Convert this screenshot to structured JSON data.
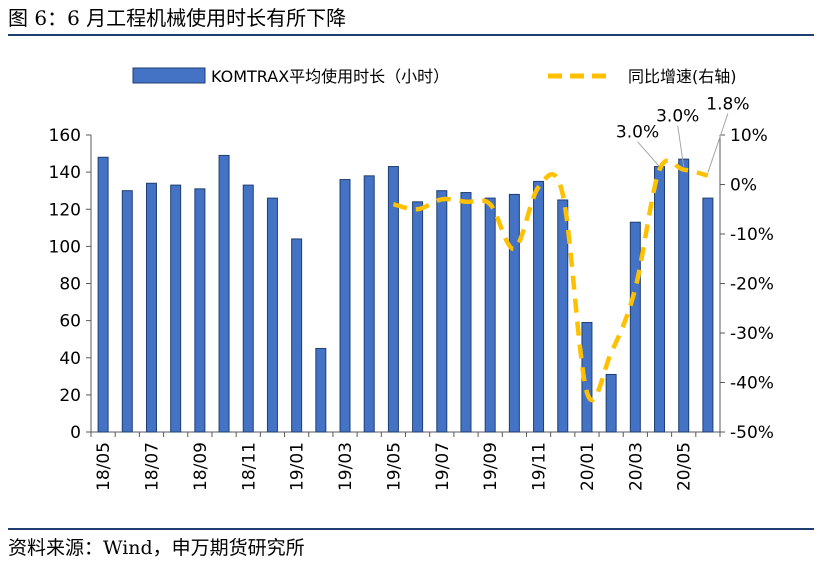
{
  "figure_title": "图 6：6 月工程机械使用时长有所下降",
  "source_text": "资料来源：Wind，申万期货研究所",
  "colors": {
    "bar_fill": "#4472c4",
    "bar_stroke": "#1f3f73",
    "line": "#ffc000",
    "rule": "#1f3f73",
    "axis": "#595959"
  },
  "chart_data": {
    "type": "bar",
    "title": "",
    "categories": [
      "18/05",
      "18/06",
      "18/07",
      "18/08",
      "18/09",
      "18/10",
      "18/11",
      "18/12",
      "19/01",
      "19/02",
      "19/03",
      "19/04",
      "19/05",
      "19/06",
      "19/07",
      "19/08",
      "19/09",
      "19/10",
      "19/11",
      "19/12",
      "20/01",
      "20/02",
      "20/03",
      "20/04",
      "20/05",
      "20/06"
    ],
    "x_tick_labels": [
      "18/05",
      "18/07",
      "18/09",
      "18/11",
      "19/01",
      "19/03",
      "19/05",
      "19/07",
      "19/09",
      "19/11",
      "20/01",
      "20/03",
      "20/05"
    ],
    "series": [
      {
        "name": "KOMTRAX平均使用时长（小时）",
        "type": "bar",
        "axis": "left",
        "values": [
          148,
          130,
          134,
          133,
          131,
          149,
          133,
          126,
          104,
          45,
          136,
          138,
          143,
          124,
          130,
          129,
          126,
          128,
          135,
          125,
          59,
          31,
          113,
          143,
          147,
          126
        ]
      },
      {
        "name": "同比增速(右轴)",
        "type": "line",
        "style": "dashed",
        "axis": "right",
        "values": [
          null,
          null,
          null,
          null,
          null,
          null,
          null,
          null,
          null,
          null,
          null,
          null,
          -4,
          -5,
          -3,
          -3.5,
          -4,
          -13,
          -0.5,
          -2,
          -42,
          -34,
          -21,
          3,
          3,
          1.8
        ]
      }
    ],
    "data_labels": [
      {
        "index": 23,
        "text": "3.0%"
      },
      {
        "index": 24,
        "text": "3.0%"
      },
      {
        "index": 25,
        "text": "1.8%"
      }
    ],
    "y_left": {
      "ylim": [
        0,
        160
      ],
      "ticks": [
        "0",
        "20",
        "40",
        "60",
        "80",
        "100",
        "120",
        "140",
        "160"
      ]
    },
    "y_right": {
      "ylim": [
        -50,
        10
      ],
      "ticks": [
        "-50%",
        "-40%",
        "-30%",
        "-20%",
        "-10%",
        "0%",
        "10%"
      ]
    },
    "grid": false,
    "legend_position": "top"
  }
}
